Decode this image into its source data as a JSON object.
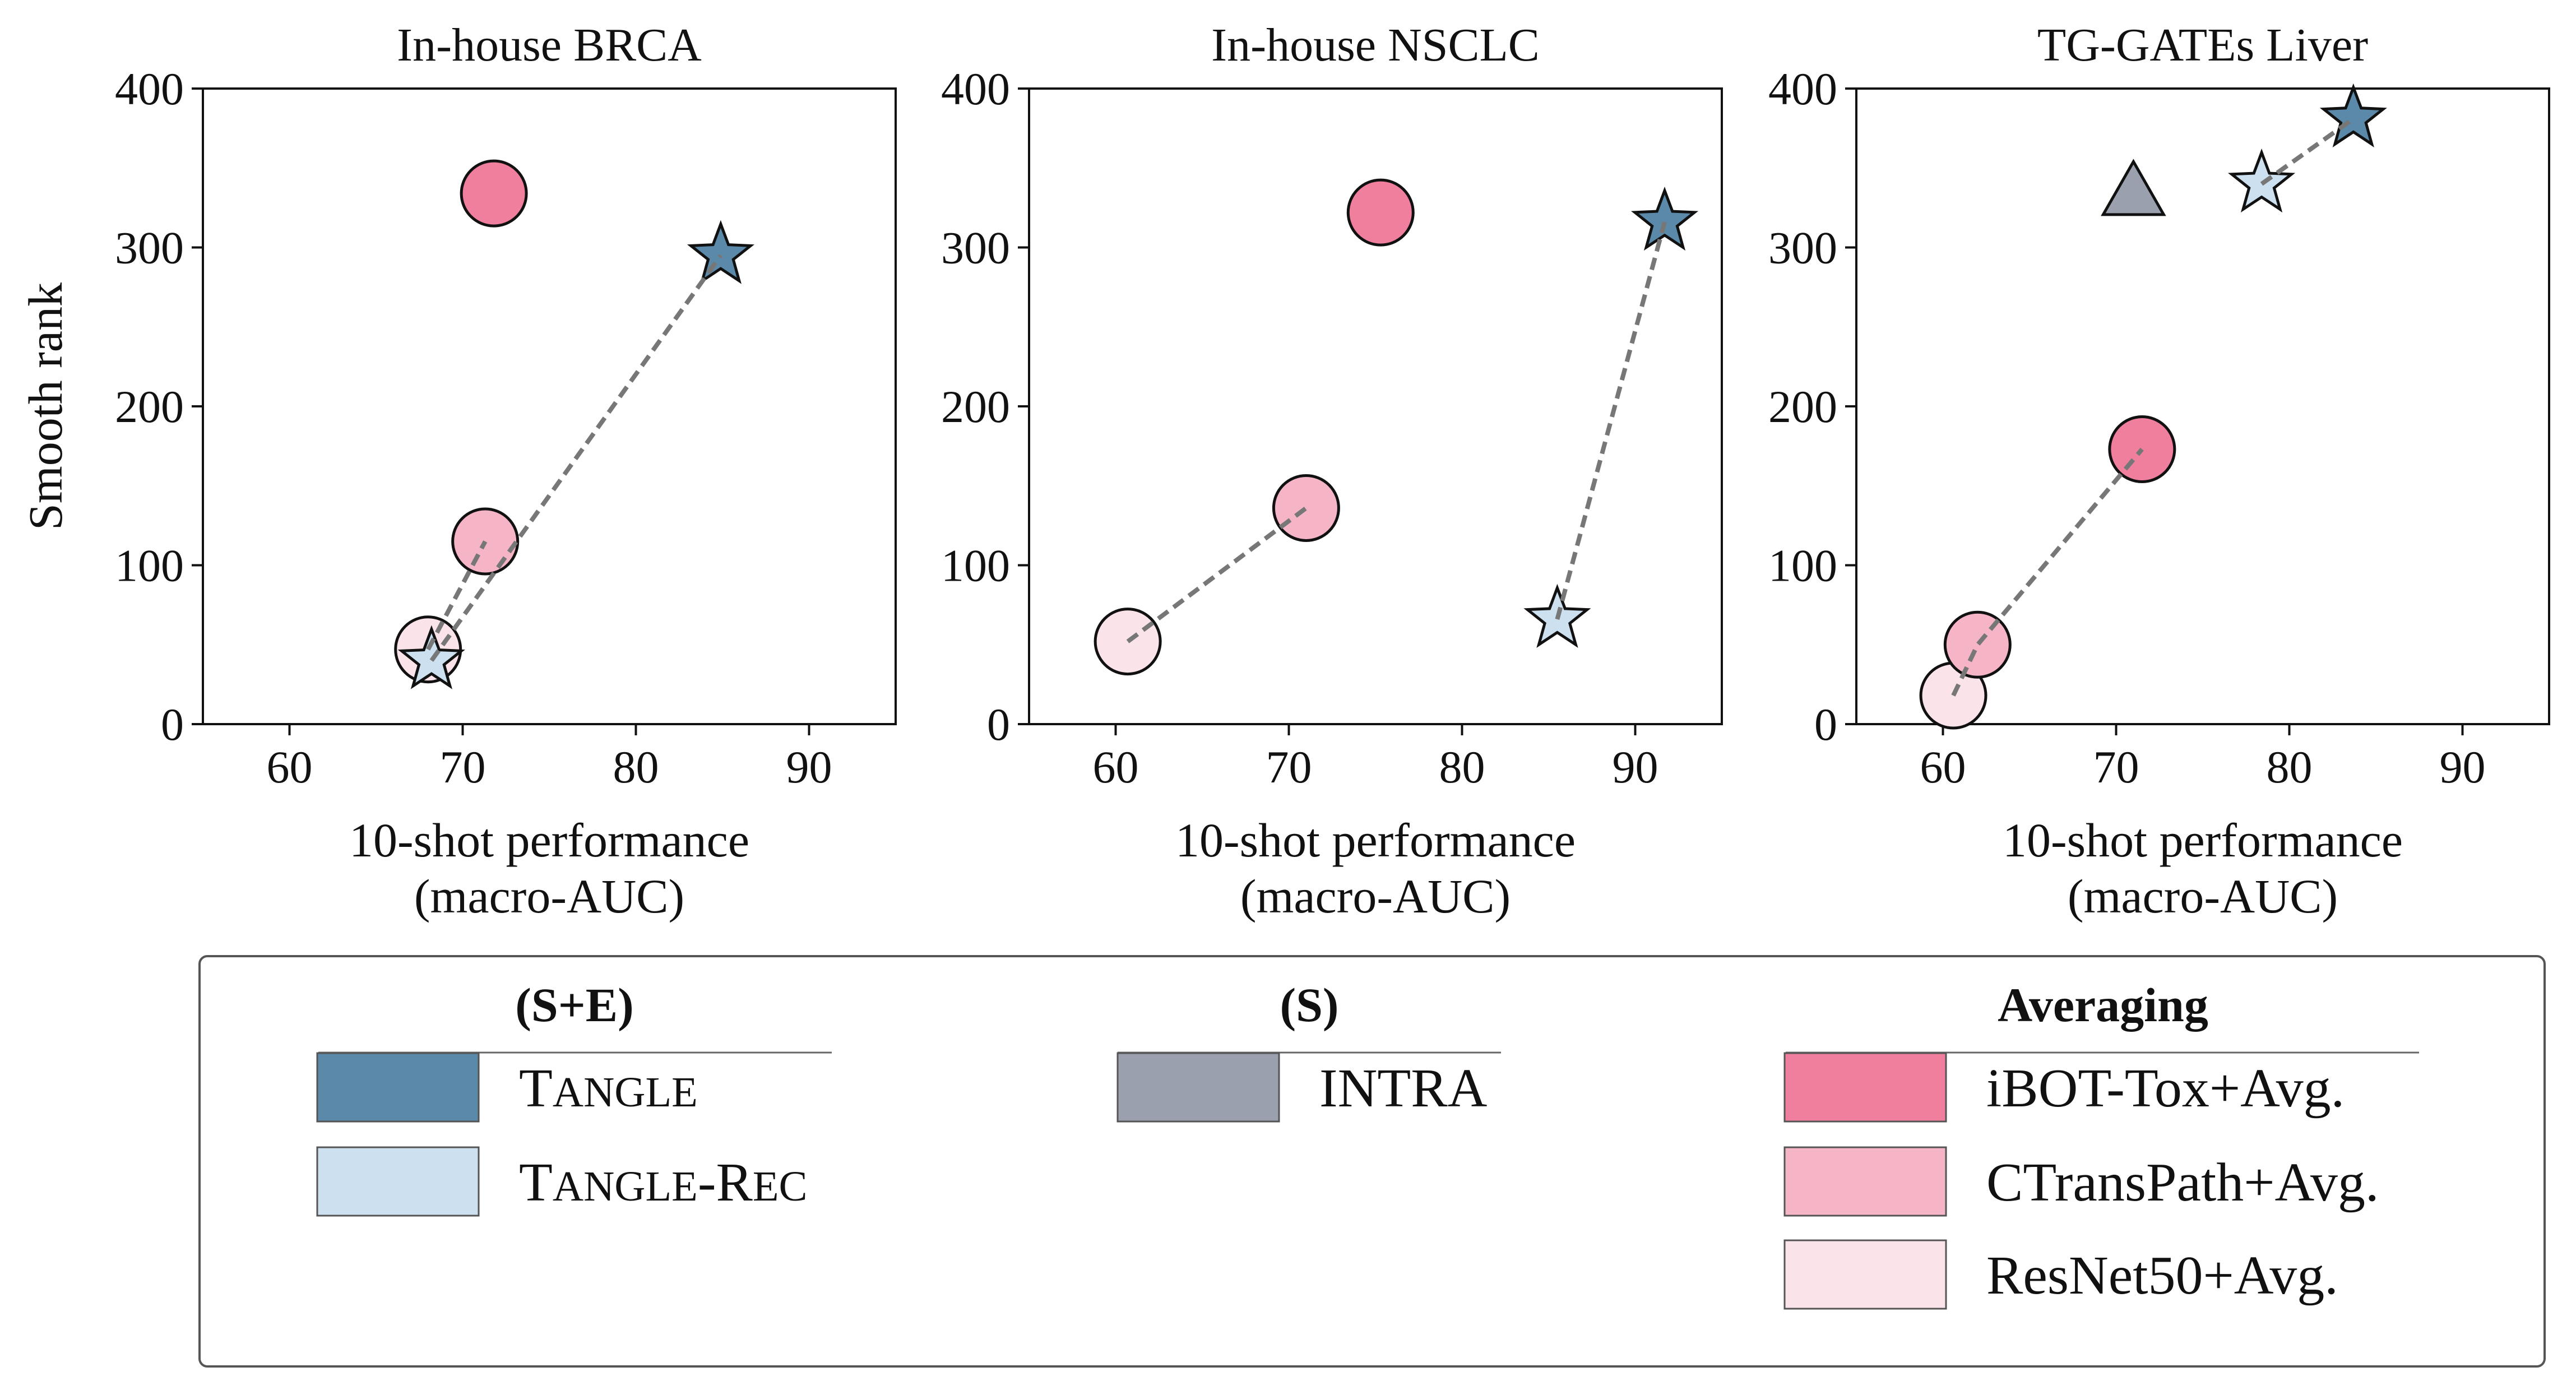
{
  "chart_data": [
    {
      "type": "scatter",
      "title": "In-house BRCA",
      "xlabel": "10-shot performance",
      "xlabel2": "(macro-AUC)",
      "ylabel": "Smooth rank",
      "xlim": [
        55,
        95
      ],
      "ylim": [
        0,
        400
      ],
      "xticks": [
        60,
        70,
        80,
        90
      ],
      "yticks": [
        0,
        100,
        200,
        300,
        400
      ],
      "points": [
        {
          "series": "ResNet50+Avg.",
          "x": 68.0,
          "y": 47
        },
        {
          "series": "CTransPath+Avg.",
          "x": 71.3,
          "y": 115
        },
        {
          "series": "iBOT-Tox+Avg.",
          "x": 71.8,
          "y": 334
        },
        {
          "series": "Tangle-Rec",
          "x": 68.2,
          "y": 40
        },
        {
          "series": "Tangle",
          "x": 84.9,
          "y": 295
        }
      ],
      "lines": [
        [
          {
            "x": 68.0,
            "y": 47
          },
          {
            "x": 71.3,
            "y": 115
          }
        ],
        [
          {
            "x": 68.2,
            "y": 40
          },
          {
            "x": 84.9,
            "y": 295
          }
        ]
      ]
    },
    {
      "type": "scatter",
      "title": "In-house NSCLC",
      "xlabel": "10-shot performance",
      "xlabel2": "(macro-AUC)",
      "ylabel": "",
      "xlim": [
        55,
        95
      ],
      "ylim": [
        0,
        400
      ],
      "xticks": [
        60,
        70,
        80,
        90
      ],
      "yticks": [
        0,
        100,
        200,
        300,
        400
      ],
      "points": [
        {
          "series": "ResNet50+Avg.",
          "x": 60.7,
          "y": 52
        },
        {
          "series": "CTransPath+Avg.",
          "x": 71.0,
          "y": 136
        },
        {
          "series": "iBOT-Tox+Avg.",
          "x": 75.3,
          "y": 322
        },
        {
          "series": "Tangle-Rec",
          "x": 85.5,
          "y": 66
        },
        {
          "series": "Tangle",
          "x": 91.7,
          "y": 316
        }
      ],
      "lines": [
        [
          {
            "x": 60.7,
            "y": 52
          },
          {
            "x": 71.0,
            "y": 136
          }
        ],
        [
          {
            "x": 85.5,
            "y": 66
          },
          {
            "x": 91.7,
            "y": 316
          }
        ]
      ]
    },
    {
      "type": "scatter",
      "title": "TG-GATEs Liver",
      "xlabel": "10-shot performance",
      "xlabel2": "(macro-AUC)",
      "ylabel": "",
      "xlim": [
        55,
        95
      ],
      "ylim": [
        0,
        400
      ],
      "xticks": [
        60,
        70,
        80,
        90
      ],
      "yticks": [
        0,
        100,
        200,
        300,
        400
      ],
      "points": [
        {
          "series": "ResNet50+Avg.",
          "x": 60.6,
          "y": 18
        },
        {
          "series": "CTransPath+Avg.",
          "x": 62.0,
          "y": 50
        },
        {
          "series": "iBOT-Tox+Avg.",
          "x": 71.5,
          "y": 173
        },
        {
          "series": "Intra",
          "x": 71.0,
          "y": 334
        },
        {
          "series": "Tangle-Rec",
          "x": 78.4,
          "y": 340
        },
        {
          "series": "Tangle",
          "x": 83.7,
          "y": 381
        }
      ],
      "lines": [
        [
          {
            "x": 60.6,
            "y": 18
          },
          {
            "x": 62.0,
            "y": 50
          },
          {
            "x": 71.5,
            "y": 173
          }
        ],
        [
          {
            "x": 78.4,
            "y": 340
          },
          {
            "x": 83.7,
            "y": 381
          }
        ]
      ]
    }
  ],
  "series_styles": {
    "Tangle": {
      "marker": "star",
      "color": "#5a89a9"
    },
    "Tangle-Rec": {
      "marker": "star",
      "color": "#cde0f0"
    },
    "Intra": {
      "marker": "triangle",
      "color": "#9aa0ae"
    },
    "iBOT-Tox+Avg.": {
      "marker": "circle",
      "color": "#f07f9e"
    },
    "CTransPath+Avg.": {
      "marker": "circle",
      "color": "#f6b5c7"
    },
    "ResNet50+Avg.": {
      "marker": "circle",
      "color": "#fbe3ea"
    }
  },
  "legend": {
    "groups": [
      {
        "title": "(S+E)",
        "items": [
          {
            "series": "Tangle",
            "label_parts": [
              {
                "t": "T",
                "sc": false
              },
              {
                "t": "ANGLE",
                "sc": true
              }
            ]
          },
          {
            "series": "Tangle-Rec",
            "label_parts": [
              {
                "t": "T",
                "sc": false
              },
              {
                "t": "ANGLE",
                "sc": true
              },
              {
                "t": "-R",
                "sc": false
              },
              {
                "t": "EC",
                "sc": true
              }
            ]
          }
        ]
      },
      {
        "title": "(S)",
        "items": [
          {
            "series": "Intra",
            "label_parts": [
              {
                "t": "INTRA",
                "sc": false
              }
            ]
          }
        ]
      },
      {
        "title": "Averaging",
        "items": [
          {
            "series": "iBOT-Tox+Avg.",
            "label_parts": [
              {
                "t": "iBOT-Tox+Avg.",
                "sc": false
              }
            ]
          },
          {
            "series": "CTransPath+Avg.",
            "label_parts": [
              {
                "t": "CTransPath+Avg.",
                "sc": false
              }
            ]
          },
          {
            "series": "ResNet50+Avg.",
            "label_parts": [
              {
                "t": "ResNet50+Avg.",
                "sc": false
              }
            ]
          }
        ]
      }
    ]
  }
}
